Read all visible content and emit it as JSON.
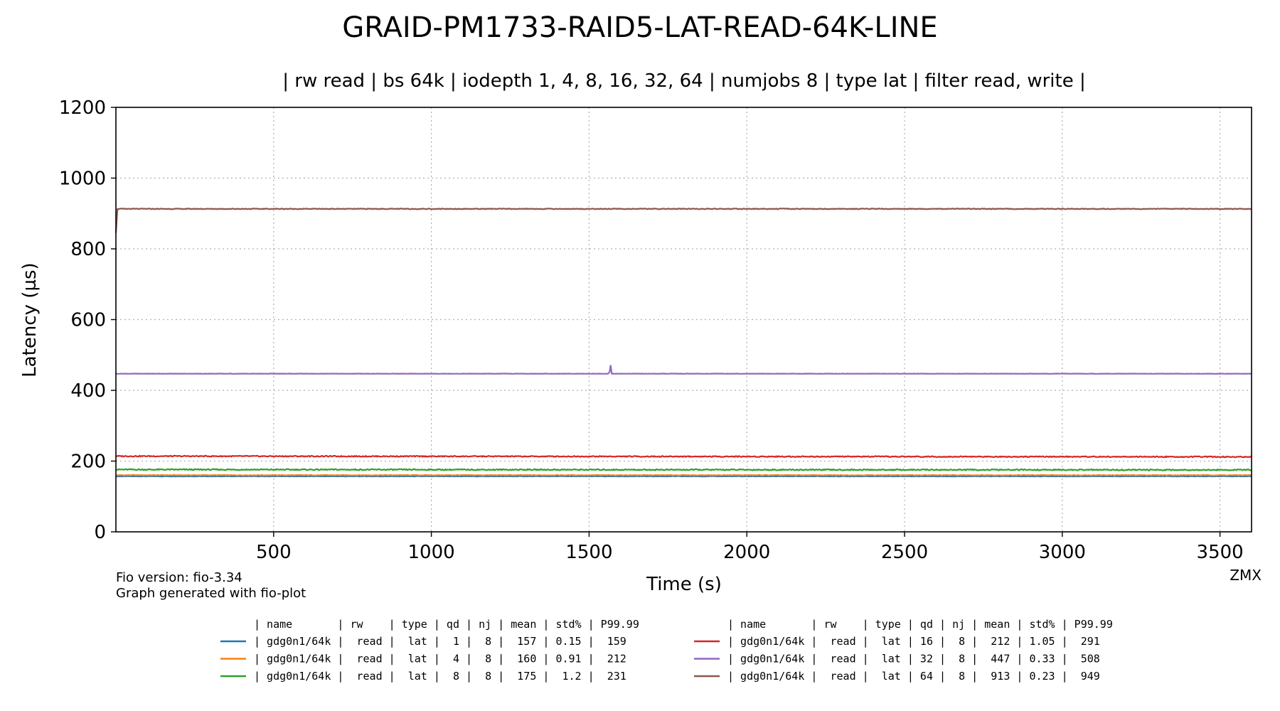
{
  "chart_data": {
    "type": "line",
    "title": "GRAID-PM1733-RAID5-LAT-READ-64K-LINE",
    "subtitle": "| rw read | bs 64k | iodepth 1, 4, 8, 16, 32, 64 | numjobs 8 | type lat | filter read, write |",
    "xlabel": "Time (s)",
    "ylabel": "Latency (µs)",
    "xlim": [
      0,
      3600
    ],
    "ylim": [
      0,
      1200
    ],
    "xticks": [
      500,
      1000,
      1500,
      2000,
      2500,
      3000,
      3500
    ],
    "yticks": [
      0,
      200,
      400,
      600,
      800,
      1000,
      1200
    ],
    "grid": true,
    "series": [
      {
        "color": "#1f77b4",
        "level": 157,
        "noise": 0.5,
        "values": [
          [
            0,
            157
          ],
          [
            3600,
            157
          ]
        ]
      },
      {
        "color": "#ff7f0e",
        "level": 160,
        "noise": 0.9,
        "values": [
          [
            0,
            160
          ],
          [
            3600,
            160
          ]
        ]
      },
      {
        "color": "#2ca02c",
        "level": 175,
        "noise": 1.6,
        "values": [
          [
            0,
            176
          ],
          [
            3600,
            175
          ]
        ]
      },
      {
        "color": "#d62728",
        "level": 212,
        "noise": 1.4,
        "values": [
          [
            0,
            214
          ],
          [
            3600,
            212
          ]
        ]
      },
      {
        "color": "#9467bd",
        "level": 447,
        "noise": 0.4,
        "values": [
          [
            0,
            447
          ],
          [
            1560,
            447
          ],
          [
            1565,
            452
          ],
          [
            1568,
            470
          ],
          [
            1572,
            447
          ],
          [
            3600,
            447
          ]
        ]
      },
      {
        "color": "#8c564b",
        "level": 913,
        "noise": 1.0,
        "values": [
          [
            0,
            845
          ],
          [
            5,
            913
          ],
          [
            3600,
            913
          ]
        ]
      }
    ],
    "legend": {
      "placement": "bottom",
      "header": "| name       | rw    | type | qd | nj | mean | std% | P99.99",
      "rows": [
        "| gdg0n1/64k |  read |  lat |  1 |  8 |  157 | 0.15 |  159",
        "| gdg0n1/64k |  read |  lat |  4 |  8 |  160 | 0.91 |  212",
        "| gdg0n1/64k |  read |  lat |  8 |  8 |  175 |  1.2 |  231",
        "| gdg0n1/64k |  read |  lat | 16 |  8 |  212 | 1.05 |  291",
        "| gdg0n1/64k |  read |  lat | 32 |  8 |  447 | 0.33 |  508",
        "| gdg0n1/64k |  read |  lat | 64 |  8 |  913 | 0.23 |  949"
      ]
    }
  },
  "footer": {
    "fio_version": "Fio version: fio-3.34",
    "generator": "Graph generated with fio-plot",
    "watermark": "ZMX"
  }
}
